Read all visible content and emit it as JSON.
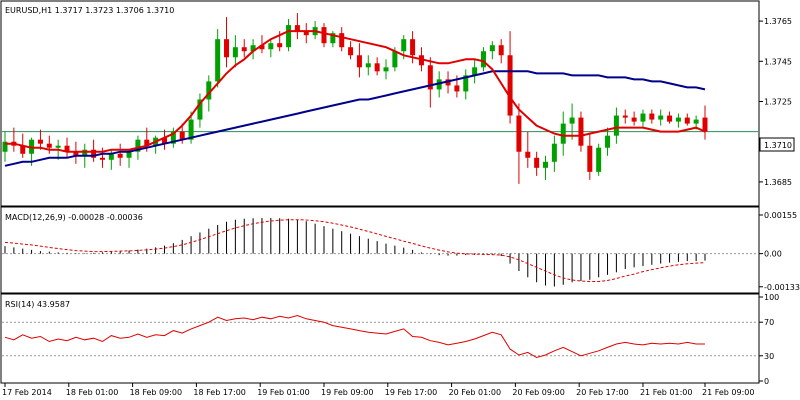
{
  "chart_data": {
    "type": "candlestick",
    "symbol_header": "EURUSD,H1  1.3717 1.3723 1.3706 1.3710",
    "current_price_label": "1.3710",
    "colors": {
      "bull": "#00a000",
      "bear": "#e00000",
      "ma_fast": "#e00000",
      "ma_slow": "#00008b",
      "macd_hist": "#000000",
      "macd_signal": "#e00000",
      "rsi": "#e00000",
      "price_line": "#2e8b57"
    },
    "x_labels": [
      "17 Feb 2014",
      "18 Feb 01:00",
      "18 Feb 09:00",
      "18 Feb 17:00",
      "19 Feb 01:00",
      "19 Feb 09:00",
      "19 Feb 17:00",
      "20 Feb 01:00",
      "20 Feb 09:00",
      "20 Feb 17:00",
      "21 Feb 01:00",
      "21 Feb 09:00"
    ],
    "price_panel": {
      "ylim": [
        1.3674,
        1.3774
      ],
      "y_ticks": [
        "1.3765",
        "1.3745",
        "1.3725",
        "1.3705",
        "1.3685"
      ],
      "current_price": 1.371,
      "candles": [
        [
          1.37,
          1.371,
          1.3695,
          1.3705
        ],
        [
          1.3705,
          1.3712,
          1.37,
          1.3703
        ],
        [
          1.3703,
          1.3709,
          1.3697,
          1.3699
        ],
        [
          1.3699,
          1.3707,
          1.3693,
          1.3706
        ],
        [
          1.3706,
          1.3711,
          1.3701,
          1.3704
        ],
        [
          1.3704,
          1.3708,
          1.3699,
          1.3702
        ],
        [
          1.3702,
          1.3706,
          1.3696,
          1.3703
        ],
        [
          1.3703,
          1.3707,
          1.3697,
          1.37
        ],
        [
          1.37,
          1.3705,
          1.3694,
          1.3698
        ],
        [
          1.3698,
          1.3704,
          1.3692,
          1.3701
        ],
        [
          1.3701,
          1.3706,
          1.3695,
          1.3697
        ],
        [
          1.3697,
          1.3702,
          1.3692,
          1.3696
        ],
        [
          1.3696,
          1.3701,
          1.3691,
          1.3699
        ],
        [
          1.3699,
          1.3704,
          1.3693,
          1.3697
        ],
        [
          1.3697,
          1.3701,
          1.3692,
          1.37
        ],
        [
          1.37,
          1.3708,
          1.3696,
          1.3706
        ],
        [
          1.3706,
          1.3712,
          1.37,
          1.3703
        ],
        [
          1.3703,
          1.3708,
          1.3699,
          1.3707
        ],
        [
          1.3707,
          1.3711,
          1.3701,
          1.3704
        ],
        [
          1.3704,
          1.3712,
          1.3702,
          1.371
        ],
        [
          1.371,
          1.3714,
          1.3704,
          1.3706
        ],
        [
          1.3706,
          1.372,
          1.3704,
          1.3716
        ],
        [
          1.3716,
          1.3729,
          1.3712,
          1.3726
        ],
        [
          1.3726,
          1.3738,
          1.372,
          1.3735
        ],
        [
          1.3735,
          1.3761,
          1.3732,
          1.3756
        ],
        [
          1.3756,
          1.3767,
          1.3742,
          1.3747
        ],
        [
          1.3747,
          1.3758,
          1.3742,
          1.3752
        ],
        [
          1.3752,
          1.3756,
          1.3747,
          1.375
        ],
        [
          1.375,
          1.3756,
          1.3746,
          1.3753
        ],
        [
          1.3753,
          1.3758,
          1.3749,
          1.3751
        ],
        [
          1.3751,
          1.3756,
          1.3747,
          1.3754
        ],
        [
          1.3754,
          1.376,
          1.375,
          1.3752
        ],
        [
          1.3752,
          1.3766,
          1.375,
          1.3763
        ],
        [
          1.3763,
          1.3769,
          1.3756,
          1.376
        ],
        [
          1.376,
          1.3764,
          1.3754,
          1.3758
        ],
        [
          1.3758,
          1.3765,
          1.3756,
          1.3762
        ],
        [
          1.3762,
          1.3764,
          1.3752,
          1.3754
        ],
        [
          1.3754,
          1.376,
          1.3752,
          1.3759
        ],
        [
          1.3759,
          1.3762,
          1.375,
          1.3752
        ],
        [
          1.3752,
          1.3755,
          1.3746,
          1.3748
        ],
        [
          1.3748,
          1.3754,
          1.3737,
          1.3742
        ],
        [
          1.3742,
          1.3748,
          1.3738,
          1.3744
        ],
        [
          1.3744,
          1.3747,
          1.3738,
          1.374
        ],
        [
          1.374,
          1.3746,
          1.3736,
          1.3742
        ],
        [
          1.3742,
          1.3752,
          1.374,
          1.375
        ],
        [
          1.375,
          1.3758,
          1.3746,
          1.3756
        ],
        [
          1.3756,
          1.376,
          1.3744,
          1.3748
        ],
        [
          1.3748,
          1.3752,
          1.374,
          1.3743
        ],
        [
          1.3743,
          1.3747,
          1.3722,
          1.3731
        ],
        [
          1.3731,
          1.374,
          1.3727,
          1.3736
        ],
        [
          1.3736,
          1.374,
          1.3729,
          1.3733
        ],
        [
          1.3733,
          1.3738,
          1.3727,
          1.373
        ],
        [
          1.373,
          1.3741,
          1.3726,
          1.3738
        ],
        [
          1.3738,
          1.3746,
          1.3734,
          1.3742
        ],
        [
          1.3742,
          1.3752,
          1.374,
          1.375
        ],
        [
          1.375,
          1.3755,
          1.3746,
          1.3753
        ],
        [
          1.3753,
          1.3756,
          1.3744,
          1.3748
        ],
        [
          1.3748,
          1.376,
          1.3714,
          1.3718
        ],
        [
          1.3718,
          1.3724,
          1.3684,
          1.37
        ],
        [
          1.37,
          1.371,
          1.3692,
          1.3697
        ],
        [
          1.3697,
          1.37,
          1.3688,
          1.3692
        ],
        [
          1.3692,
          1.3698,
          1.3686,
          1.3695
        ],
        [
          1.3695,
          1.3708,
          1.369,
          1.3704
        ],
        [
          1.3704,
          1.372,
          1.3698,
          1.3714
        ],
        [
          1.3714,
          1.3724,
          1.3706,
          1.3717
        ],
        [
          1.3717,
          1.372,
          1.37,
          1.3703
        ],
        [
          1.3703,
          1.3709,
          1.3686,
          1.369
        ],
        [
          1.369,
          1.3704,
          1.3688,
          1.3702
        ],
        [
          1.3702,
          1.3712,
          1.3698,
          1.3708
        ],
        [
          1.3708,
          1.3722,
          1.3704,
          1.3718
        ],
        [
          1.3718,
          1.3721,
          1.3714,
          1.3717
        ],
        [
          1.3717,
          1.372,
          1.3713,
          1.3715
        ],
        [
          1.3715,
          1.3721,
          1.3712,
          1.3719
        ],
        [
          1.3719,
          1.3721,
          1.3714,
          1.3716
        ],
        [
          1.3716,
          1.3721,
          1.3713,
          1.3718
        ],
        [
          1.3718,
          1.372,
          1.3714,
          1.3715
        ],
        [
          1.3715,
          1.3719,
          1.3712,
          1.3717
        ],
        [
          1.3717,
          1.3719,
          1.3713,
          1.3714
        ],
        [
          1.3714,
          1.3718,
          1.3711,
          1.3716
        ],
        [
          1.3717,
          1.3723,
          1.3706,
          1.371
        ]
      ],
      "ma_fast": [
        1.3704,
        1.3704,
        1.3703,
        1.3702,
        1.3702,
        1.3701,
        1.3701,
        1.37,
        1.37,
        1.37,
        1.37,
        1.37,
        1.3701,
        1.3701,
        1.3701,
        1.3702,
        1.3703,
        1.3705,
        1.3707,
        1.3709,
        1.3713,
        1.3718,
        1.3724,
        1.3729,
        1.3734,
        1.3739,
        1.3743,
        1.3746,
        1.375,
        1.3753,
        1.3756,
        1.3758,
        1.376,
        1.376,
        1.376,
        1.376,
        1.3759,
        1.3758,
        1.3757,
        1.3756,
        1.3755,
        1.3754,
        1.3753,
        1.3752,
        1.375,
        1.3748,
        1.3747,
        1.3746,
        1.3745,
        1.3744,
        1.3744,
        1.3745,
        1.3746,
        1.3746,
        1.3745,
        1.3741,
        1.3734,
        1.3727,
        1.3721,
        1.3717,
        1.3713,
        1.3711,
        1.3709,
        1.3708,
        1.3708,
        1.3708,
        1.3709,
        1.371,
        1.3711,
        1.3712,
        1.3712,
        1.3712,
        1.3712,
        1.3711,
        1.371,
        1.371,
        1.371,
        1.3711,
        1.3712,
        1.371
      ],
      "ma_slow": [
        1.3693,
        1.3694,
        1.3695,
        1.3695,
        1.3696,
        1.3697,
        1.3697,
        1.3697,
        1.3698,
        1.3698,
        1.3698,
        1.3699,
        1.3699,
        1.37,
        1.37,
        1.3701,
        1.3702,
        1.3703,
        1.3704,
        1.3705,
        1.3706,
        1.3707,
        1.3708,
        1.3709,
        1.371,
        1.3711,
        1.3712,
        1.3713,
        1.3714,
        1.3715,
        1.3716,
        1.3717,
        1.3718,
        1.3719,
        1.372,
        1.3721,
        1.3722,
        1.3723,
        1.3724,
        1.3725,
        1.3726,
        1.3726,
        1.3727,
        1.3728,
        1.3729,
        1.373,
        1.3731,
        1.3732,
        1.3733,
        1.3734,
        1.3735,
        1.3736,
        1.3737,
        1.3738,
        1.3739,
        1.374,
        1.374,
        1.374,
        1.374,
        1.374,
        1.3739,
        1.3739,
        1.3739,
        1.3739,
        1.3738,
        1.3738,
        1.3738,
        1.3738,
        1.3737,
        1.3737,
        1.3737,
        1.3736,
        1.3736,
        1.3735,
        1.3735,
        1.3734,
        1.3733,
        1.3732,
        1.3732,
        1.3731
      ]
    },
    "macd_panel": {
      "label": "MACD(12,26,9) -0.00028 -0.00036",
      "ylim": [
        -0.0015,
        0.00175
      ],
      "y_ticks": [
        "0.00155",
        "0.00",
        "-0.00133"
      ],
      "histogram": [
        0.0003,
        0.00025,
        0.0002,
        0.00015,
        0.0001,
        8e-05,
        5e-05,
        3e-05,
        2e-05,
        2e-05,
        3e-05,
        5e-05,
        8e-05,
        0.0001,
        0.00012,
        0.00016,
        0.0002,
        0.00025,
        0.00032,
        0.00042,
        0.00055,
        0.0007,
        0.00085,
        0.001,
        0.00115,
        0.00128,
        0.00136,
        0.0014,
        0.00142,
        0.00143,
        0.00143,
        0.00142,
        0.0014,
        0.00136,
        0.0013,
        0.0012,
        0.0011,
        0.001,
        0.0009,
        0.0008,
        0.0007,
        0.0006,
        0.0005,
        0.0004,
        0.00032,
        0.00024,
        0.00015,
        5e-05,
        -2e-05,
        -6e-05,
        -8e-05,
        -8e-05,
        -6e-05,
        -5e-05,
        -4e-05,
        -5e-05,
        -0.0001,
        -0.0004,
        -0.0007,
        -0.00095,
        -0.00115,
        -0.00128,
        -0.00132,
        -0.00125,
        -0.00115,
        -0.0011,
        -0.00105,
        -0.00095,
        -0.00085,
        -0.00075,
        -0.00062,
        -0.00055,
        -0.0005,
        -0.00045,
        -0.0004,
        -0.00036,
        -0.00033,
        -0.0003,
        -0.0003,
        -0.00028
      ],
      "signal": [
        0.00045,
        0.00042,
        0.00038,
        0.00035,
        0.0003,
        0.00025,
        0.0002,
        0.00016,
        0.00012,
        0.0001,
        8e-05,
        8e-05,
        9e-05,
        0.0001,
        0.00011,
        0.00013,
        0.00015,
        0.00018,
        0.00022,
        0.00028,
        0.00035,
        0.00045,
        0.00056,
        0.00068,
        0.0008,
        0.00092,
        0.00103,
        0.00112,
        0.0012,
        0.00126,
        0.00131,
        0.00134,
        0.00136,
        0.00136,
        0.00135,
        0.00132,
        0.00128,
        0.00122,
        0.00115,
        0.00107,
        0.00098,
        0.00089,
        0.00079,
        0.00069,
        0.0006,
        0.0005,
        0.00041,
        0.00031,
        0.00022,
        0.00014,
        7e-05,
        2e-05,
        -1e-05,
        -2e-05,
        -3e-05,
        -4e-05,
        -6e-05,
        -0.00013,
        -0.00025,
        -0.0004,
        -0.00055,
        -0.0007,
        -0.00085,
        -0.00098,
        -0.00106,
        -0.0011,
        -0.00112,
        -0.00112,
        -0.00108,
        -0.001,
        -0.0009,
        -0.00082,
        -0.00072,
        -0.00064,
        -0.00057,
        -0.0005,
        -0.00045,
        -0.00041,
        -0.00038,
        -0.00036
      ]
    },
    "rsi_panel": {
      "label": "RSI(14) 43.9587",
      "ylim": [
        0,
        100
      ],
      "y_ticks": [
        "100",
        "70",
        "30",
        "0"
      ],
      "levels": [
        70,
        30
      ],
      "values": [
        52,
        49,
        55,
        51,
        53,
        47,
        50,
        48,
        52,
        49,
        51,
        47,
        54,
        51,
        52,
        56,
        52,
        55,
        54,
        60,
        57,
        62,
        66,
        70,
        76,
        72,
        74,
        75,
        73,
        76,
        74,
        77,
        75,
        78,
        74,
        72,
        70,
        66,
        64,
        62,
        60,
        58,
        57,
        56,
        59,
        62,
        53,
        52,
        48,
        46,
        43,
        45,
        47,
        50,
        54,
        58,
        55,
        38,
        31,
        34,
        28,
        31,
        36,
        40,
        35,
        30,
        33,
        36,
        40,
        44,
        46,
        44,
        43,
        45,
        44,
        45,
        44,
        46,
        44,
        44
      ]
    }
  }
}
